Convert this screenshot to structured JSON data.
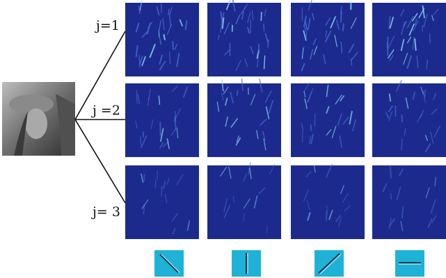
{
  "rows": [
    {
      "label": "j=1"
    },
    {
      "label": "j =2"
    },
    {
      "label": "j= 3"
    }
  ]
}
